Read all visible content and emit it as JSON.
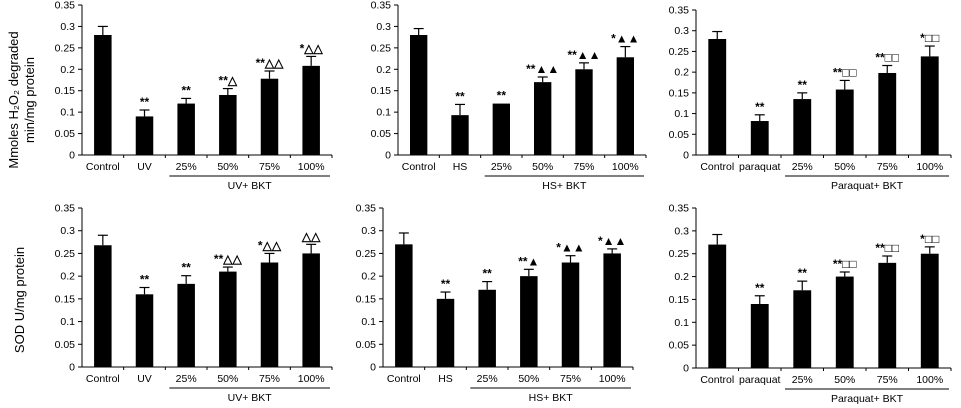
{
  "y_labels": {
    "top_line1": "Mmoles H₂O₂ degraded",
    "top_line2": "min/mg protein",
    "bottom": "SOD U/mg protein"
  },
  "chart_data": [
    {
      "type": "bar",
      "categories": [
        "Control",
        "UV",
        "25%",
        "50%",
        "75%",
        "100%"
      ],
      "values": [
        0.28,
        0.09,
        0.12,
        0.14,
        0.178,
        0.208
      ],
      "errors": [
        0.02,
        0.015,
        0.012,
        0.015,
        0.018,
        0.022
      ],
      "annotations": [
        "",
        "**",
        "**",
        "**△",
        "**△△",
        "*△△"
      ],
      "group_label": "UV+ BKT",
      "ylim": [
        0,
        0.35
      ],
      "yticks": [
        "0",
        "0.05",
        "0.1",
        "0.15",
        "0.2",
        "0.25",
        "0.3",
        "0.35"
      ],
      "ytick_values": [
        0,
        0.05,
        0.1,
        0.15,
        0.2,
        0.25,
        0.3,
        0.35
      ]
    },
    {
      "type": "bar",
      "categories": [
        "Control",
        "HS",
        "25%",
        "50%",
        "75%",
        "100%"
      ],
      "values": [
        0.28,
        0.093,
        0.12,
        0.17,
        0.2,
        0.228
      ],
      "errors": [
        0.015,
        0.025,
        0.0,
        0.012,
        0.015,
        0.025
      ],
      "annotations": [
        "",
        "**",
        "**",
        "**▲▲",
        "**▲▲",
        "*▲▲"
      ],
      "group_label": "HS+ BKT",
      "ylim": [
        0,
        0.35
      ],
      "yticks": [
        "0",
        "0.05",
        "0.1",
        "0.15",
        "0.2",
        "0.25",
        "0.3",
        "0.35"
      ],
      "ytick_values": [
        0,
        0.05,
        0.1,
        0.15,
        0.2,
        0.25,
        0.3,
        0.35
      ]
    },
    {
      "type": "bar",
      "categories": [
        "Control",
        "paraquat",
        "25%",
        "50%",
        "75%",
        "100%"
      ],
      "values": [
        0.28,
        0.082,
        0.135,
        0.158,
        0.198,
        0.238
      ],
      "errors": [
        0.018,
        0.015,
        0.015,
        0.022,
        0.018,
        0.025
      ],
      "annotations": [
        "",
        "**",
        "**",
        "**□□",
        "**□□",
        "*□□"
      ],
      "group_label": "Paraquat+ BKT",
      "ylim": [
        0,
        0.35
      ],
      "yticks": [
        "0",
        "0.05",
        "0.1",
        "0.15",
        "0.2",
        "0.25",
        "0.3",
        "0.35"
      ],
      "ytick_values": [
        0,
        0.05,
        0.1,
        0.15,
        0.2,
        0.25,
        0.3,
        0.35
      ]
    },
    {
      "type": "bar",
      "categories": [
        "Control",
        "UV",
        "25%",
        "50%",
        "75%",
        "100%"
      ],
      "values": [
        0.268,
        0.16,
        0.183,
        0.21,
        0.23,
        0.25
      ],
      "errors": [
        0.022,
        0.015,
        0.018,
        0.01,
        0.02,
        0.02
      ],
      "annotations": [
        "",
        "**",
        "**",
        "**△△",
        "*△△",
        "△△"
      ],
      "group_label": "UV+ BKT",
      "ylim": [
        0,
        0.35
      ],
      "yticks": [
        "0",
        "0.05",
        "0.1",
        "0.15",
        "0.2",
        "0.25",
        "0.3",
        "0.35"
      ],
      "ytick_values": [
        0,
        0.05,
        0.1,
        0.15,
        0.2,
        0.25,
        0.3,
        0.35
      ]
    },
    {
      "type": "bar",
      "categories": [
        "Control",
        "HS",
        "25%",
        "50%",
        "75%",
        "100%"
      ],
      "values": [
        0.27,
        0.15,
        0.17,
        0.2,
        0.23,
        0.25
      ],
      "errors": [
        0.025,
        0.015,
        0.018,
        0.015,
        0.015,
        0.01
      ],
      "annotations": [
        "",
        "**",
        "**",
        "**▲",
        "*▲▲",
        "*▲▲"
      ],
      "group_label": "HS+ BKT",
      "ylim": [
        0,
        0.35
      ],
      "yticks": [
        "0",
        "0.05",
        "0.1",
        "0.15",
        "0.2",
        "0.25",
        "0.3",
        "0.35"
      ],
      "ytick_values": [
        0,
        0.05,
        0.1,
        0.15,
        0.2,
        0.25,
        0.3,
        0.35
      ]
    },
    {
      "type": "bar",
      "categories": [
        "Control",
        "paraquat",
        "25%",
        "50%",
        "75%",
        "100%"
      ],
      "values": [
        0.27,
        0.14,
        0.17,
        0.2,
        0.23,
        0.25
      ],
      "errors": [
        0.022,
        0.018,
        0.02,
        0.01,
        0.015,
        0.015
      ],
      "annotations": [
        "",
        "**",
        "**",
        "**□□",
        "**□□",
        "*□□"
      ],
      "group_label": "Paraquat+ BKT",
      "ylim": [
        0,
        0.35
      ],
      "yticks": [
        "0",
        "0.05",
        "0.1",
        "0.15",
        "0.2",
        "0.25",
        "0.3",
        "0.35"
      ],
      "ytick_values": [
        0,
        0.05,
        0.1,
        0.15,
        0.2,
        0.25,
        0.3,
        0.35
      ]
    }
  ]
}
